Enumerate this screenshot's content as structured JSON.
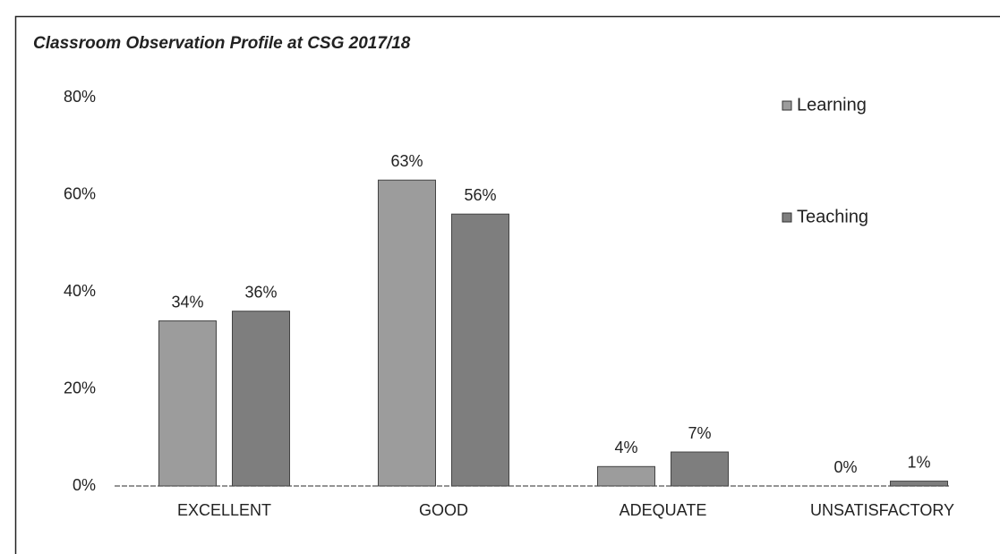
{
  "chart_data": {
    "type": "bar",
    "title": "Classroom Observation Profile at CSG 2017/18",
    "categories": [
      "EXCELLENT",
      "GOOD",
      "ADEQUATE",
      "UNSATISFACTORY"
    ],
    "series": [
      {
        "name": "Learning",
        "color": "#9c9c9c",
        "values": [
          34,
          63,
          4,
          0
        ],
        "value_labels": [
          "34%",
          "63%",
          "4%",
          "0%"
        ]
      },
      {
        "name": "Teaching",
        "color": "#7e7e7e",
        "values": [
          36,
          56,
          7,
          1
        ],
        "value_labels": [
          "36%",
          "56%",
          "7%",
          "1%"
        ]
      }
    ],
    "ylim": [
      0,
      80
    ],
    "yticks": [
      {
        "value": 0,
        "label": "0%"
      },
      {
        "value": 20,
        "label": "20%"
      },
      {
        "value": 40,
        "label": "40%"
      },
      {
        "value": 60,
        "label": "60%"
      },
      {
        "value": 80,
        "label": "80%"
      }
    ],
    "grid": false,
    "legend": "upper right"
  }
}
